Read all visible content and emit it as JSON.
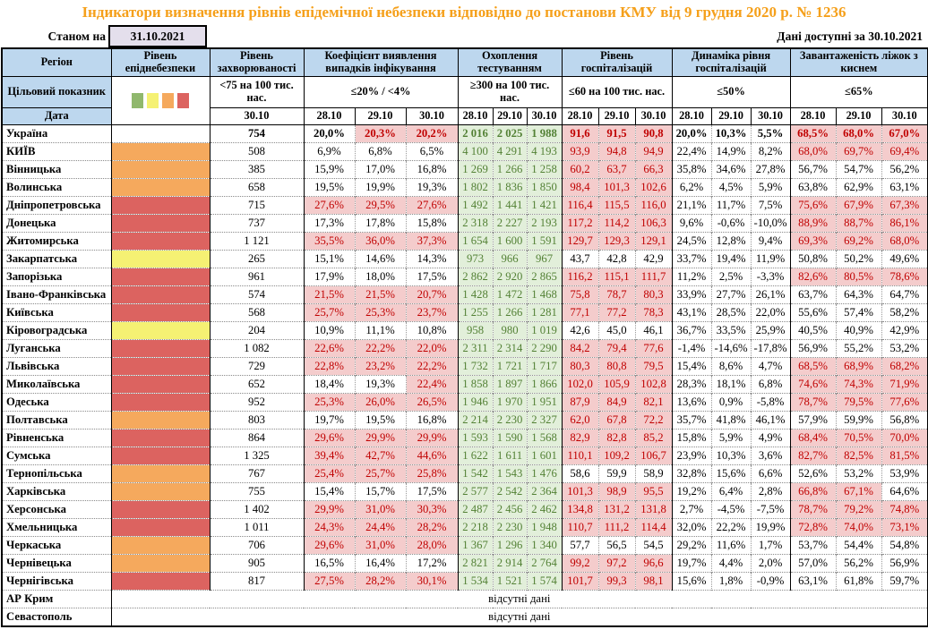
{
  "title": "Індикатори визначення рівнів епідемічної небезпеки відповідно до постанови КМУ від 9 грудня 2020 р. № 1236",
  "meta": {
    "as_of_label": "Станом на",
    "as_of_date": "31.10.2021",
    "available_label": "Дані доступні за",
    "available_date": "30.10.2021"
  },
  "header": {
    "region": "Регіон",
    "target_label": "Цільовий показник",
    "date_label": "Дата",
    "legend_colors": [
      "#90B86D",
      "#F5F173",
      "#F5A95D",
      "#DC6360"
    ],
    "groups": [
      {
        "name": "Рівень епіднебезпеки",
        "target": "",
        "dates": []
      },
      {
        "name": "Рівень захворюваності",
        "target": "<75 на 100 тис. нас.",
        "dates": [
          "30.10"
        ]
      },
      {
        "name": "Коефіцієнт виявлення випадків інфікування",
        "target": "≤20% / <4%",
        "dates": [
          "28.10",
          "29.10",
          "30.10"
        ]
      },
      {
        "name": "Охоплення тестуванням",
        "target": "≥300 на 100 тис. нас.",
        "dates": [
          "28.10",
          "29.10",
          "30.10"
        ]
      },
      {
        "name": "Рівень госпіталізацій",
        "target": "≤60 на 100 тис. нас.",
        "dates": [
          "28.10",
          "29.10",
          "30.10"
        ]
      },
      {
        "name": "Динаміка рівня госпіталізацій",
        "target": "≤50%",
        "dates": [
          "28.10",
          "29.10",
          "30.10"
        ]
      },
      {
        "name": "Завантаженість ліжок з киснем",
        "target": "≤65%",
        "dates": [
          "28.10",
          "29.10",
          "30.10"
        ]
      }
    ]
  },
  "colors": {
    "title_orange": "#F5A01B",
    "header_blue": "#BDD7EE",
    "date_box_bg": "#E4DFEC",
    "highlight_red_bg": "#F4CCCC",
    "highlight_red_text": "#C00000",
    "testing_green_bg": "#E2EFDA",
    "testing_green_text": "#538135",
    "epid": {
      "green": "#90B86D",
      "yellow": "#F5F173",
      "orange": "#F5A95D",
      "red": "#DC6360"
    }
  },
  "no_data_label": "відсутні дані",
  "no_data_rows": [
    {
      "region": "АР Крим"
    },
    {
      "region": "Севастополь"
    }
  ],
  "rows": [
    {
      "region": "Україна",
      "total": true,
      "epid": "",
      "incidence": "754",
      "detection": [
        "20,0%",
        "20,3%",
        "20,2%"
      ],
      "detection_hl": [
        0,
        1,
        1
      ],
      "testing": [
        "2 016",
        "2 025",
        "1 988"
      ],
      "hosp": [
        "91,6",
        "91,5",
        "90,8"
      ],
      "hosp_hl": [
        1,
        1,
        1
      ],
      "dynamics": [
        "20,0%",
        "10,3%",
        "5,5%"
      ],
      "oxygen": [
        "68,5%",
        "68,0%",
        "67,0%"
      ],
      "oxygen_hl": [
        1,
        1,
        1
      ]
    },
    {
      "region": "КИЇВ",
      "epid": "orange",
      "incidence": "508",
      "detection": [
        "6,9%",
        "6,8%",
        "6,5%"
      ],
      "detection_hl": [
        0,
        0,
        0
      ],
      "testing": [
        "4 100",
        "4 291",
        "4 193"
      ],
      "hosp": [
        "93,9",
        "94,8",
        "94,9"
      ],
      "hosp_hl": [
        1,
        1,
        1
      ],
      "dynamics": [
        "22,4%",
        "14,9%",
        "8,2%"
      ],
      "oxygen": [
        "68,0%",
        "69,7%",
        "69,4%"
      ],
      "oxygen_hl": [
        1,
        1,
        1
      ]
    },
    {
      "region": "Вінницька",
      "epid": "orange",
      "incidence": "385",
      "detection": [
        "15,9%",
        "17,0%",
        "16,8%"
      ],
      "detection_hl": [
        0,
        0,
        0
      ],
      "testing": [
        "1 269",
        "1 266",
        "1 258"
      ],
      "hosp": [
        "60,2",
        "63,7",
        "66,3"
      ],
      "hosp_hl": [
        1,
        1,
        1
      ],
      "dynamics": [
        "35,8%",
        "34,6%",
        "27,8%"
      ],
      "oxygen": [
        "56,7%",
        "54,7%",
        "56,2%"
      ],
      "oxygen_hl": [
        0,
        0,
        0
      ]
    },
    {
      "region": "Волинська",
      "epid": "orange",
      "incidence": "658",
      "detection": [
        "19,5%",
        "19,9%",
        "19,3%"
      ],
      "detection_hl": [
        0,
        0,
        0
      ],
      "testing": [
        "1 802",
        "1 836",
        "1 850"
      ],
      "hosp": [
        "98,4",
        "101,3",
        "102,6"
      ],
      "hosp_hl": [
        1,
        1,
        1
      ],
      "dynamics": [
        "6,2%",
        "4,5%",
        "5,9%"
      ],
      "oxygen": [
        "63,8%",
        "62,9%",
        "63,1%"
      ],
      "oxygen_hl": [
        0,
        0,
        0
      ]
    },
    {
      "region": "Дніпропетровська",
      "epid": "red",
      "incidence": "715",
      "detection": [
        "27,6%",
        "29,5%",
        "27,6%"
      ],
      "detection_hl": [
        1,
        1,
        1
      ],
      "testing": [
        "1 492",
        "1 441",
        "1 421"
      ],
      "hosp": [
        "116,4",
        "115,5",
        "116,0"
      ],
      "hosp_hl": [
        1,
        1,
        1
      ],
      "dynamics": [
        "21,1%",
        "11,7%",
        "7,5%"
      ],
      "oxygen": [
        "75,6%",
        "67,9%",
        "67,3%"
      ],
      "oxygen_hl": [
        1,
        1,
        1
      ]
    },
    {
      "region": "Донецька",
      "epid": "red",
      "incidence": "737",
      "detection": [
        "17,3%",
        "17,8%",
        "15,8%"
      ],
      "detection_hl": [
        0,
        0,
        0
      ],
      "testing": [
        "2 318",
        "2 227",
        "2 193"
      ],
      "hosp": [
        "117,2",
        "114,2",
        "106,3"
      ],
      "hosp_hl": [
        1,
        1,
        1
      ],
      "dynamics": [
        "9,6%",
        "-0,6%",
        "-10,0%"
      ],
      "oxygen": [
        "88,9%",
        "88,7%",
        "86,1%"
      ],
      "oxygen_hl": [
        1,
        1,
        1
      ]
    },
    {
      "region": "Житомирська",
      "epid": "red",
      "incidence": "1 121",
      "detection": [
        "35,5%",
        "36,0%",
        "37,3%"
      ],
      "detection_hl": [
        1,
        1,
        1
      ],
      "testing": [
        "1 654",
        "1 600",
        "1 591"
      ],
      "hosp": [
        "129,7",
        "129,3",
        "129,1"
      ],
      "hosp_hl": [
        1,
        1,
        1
      ],
      "dynamics": [
        "24,5%",
        "12,8%",
        "9,4%"
      ],
      "oxygen": [
        "69,3%",
        "69,2%",
        "68,0%"
      ],
      "oxygen_hl": [
        1,
        1,
        1
      ]
    },
    {
      "region": "Закарпатська",
      "epid": "yellow",
      "incidence": "265",
      "detection": [
        "15,1%",
        "14,6%",
        "14,3%"
      ],
      "detection_hl": [
        0,
        0,
        0
      ],
      "testing": [
        "973",
        "966",
        "967"
      ],
      "hosp": [
        "43,7",
        "42,8",
        "42,9"
      ],
      "hosp_hl": [
        0,
        0,
        0
      ],
      "dynamics": [
        "33,7%",
        "19,4%",
        "11,9%"
      ],
      "oxygen": [
        "50,8%",
        "50,2%",
        "49,6%"
      ],
      "oxygen_hl": [
        0,
        0,
        0
      ]
    },
    {
      "region": "Запорізька",
      "epid": "red",
      "incidence": "961",
      "detection": [
        "17,9%",
        "18,0%",
        "17,5%"
      ],
      "detection_hl": [
        0,
        0,
        0
      ],
      "testing": [
        "2 862",
        "2 920",
        "2 865"
      ],
      "hosp": [
        "116,2",
        "115,1",
        "111,7"
      ],
      "hosp_hl": [
        1,
        1,
        1
      ],
      "dynamics": [
        "11,2%",
        "2,5%",
        "-3,3%"
      ],
      "oxygen": [
        "82,6%",
        "80,5%",
        "78,6%"
      ],
      "oxygen_hl": [
        1,
        1,
        1
      ]
    },
    {
      "region": "Івано-Франківська",
      "epid": "red",
      "incidence": "574",
      "detection": [
        "21,5%",
        "21,5%",
        "20,7%"
      ],
      "detection_hl": [
        1,
        1,
        1
      ],
      "testing": [
        "1 428",
        "1 472",
        "1 468"
      ],
      "hosp": [
        "75,8",
        "78,7",
        "80,3"
      ],
      "hosp_hl": [
        1,
        1,
        1
      ],
      "dynamics": [
        "33,9%",
        "27,7%",
        "26,1%"
      ],
      "oxygen": [
        "63,7%",
        "64,3%",
        "64,7%"
      ],
      "oxygen_hl": [
        0,
        0,
        0
      ]
    },
    {
      "region": "Київська",
      "epid": "red",
      "incidence": "568",
      "detection": [
        "25,7%",
        "25,3%",
        "23,7%"
      ],
      "detection_hl": [
        1,
        1,
        1
      ],
      "testing": [
        "1 255",
        "1 266",
        "1 281"
      ],
      "hosp": [
        "77,1",
        "77,2",
        "78,3"
      ],
      "hosp_hl": [
        1,
        1,
        1
      ],
      "dynamics": [
        "43,1%",
        "28,5%",
        "22,0%"
      ],
      "oxygen": [
        "55,6%",
        "57,4%",
        "58,2%"
      ],
      "oxygen_hl": [
        0,
        0,
        0
      ]
    },
    {
      "region": "Кіровоградська",
      "epid": "yellow",
      "incidence": "204",
      "detection": [
        "10,9%",
        "11,1%",
        "10,8%"
      ],
      "detection_hl": [
        0,
        0,
        0
      ],
      "testing": [
        "958",
        "980",
        "1 019"
      ],
      "hosp": [
        "42,6",
        "45,0",
        "46,1"
      ],
      "hosp_hl": [
        0,
        0,
        0
      ],
      "dynamics": [
        "36,7%",
        "33,5%",
        "25,9%"
      ],
      "oxygen": [
        "40,5%",
        "40,9%",
        "42,9%"
      ],
      "oxygen_hl": [
        0,
        0,
        0
      ]
    },
    {
      "region": "Луганська",
      "epid": "red",
      "incidence": "1 082",
      "detection": [
        "22,6%",
        "22,2%",
        "22,0%"
      ],
      "detection_hl": [
        1,
        1,
        1
      ],
      "testing": [
        "2 311",
        "2 314",
        "2 290"
      ],
      "hosp": [
        "84,2",
        "79,4",
        "77,6"
      ],
      "hosp_hl": [
        1,
        1,
        1
      ],
      "dynamics": [
        "-1,4%",
        "-14,6%",
        "-17,8%"
      ],
      "oxygen": [
        "56,9%",
        "55,2%",
        "53,2%"
      ],
      "oxygen_hl": [
        0,
        0,
        0
      ]
    },
    {
      "region": "Львівська",
      "epid": "red",
      "incidence": "729",
      "detection": [
        "22,8%",
        "23,2%",
        "22,2%"
      ],
      "detection_hl": [
        1,
        1,
        1
      ],
      "testing": [
        "1 732",
        "1 721",
        "1 717"
      ],
      "hosp": [
        "80,3",
        "80,8",
        "79,5"
      ],
      "hosp_hl": [
        1,
        1,
        1
      ],
      "dynamics": [
        "15,4%",
        "8,6%",
        "4,7%"
      ],
      "oxygen": [
        "68,5%",
        "68,9%",
        "68,2%"
      ],
      "oxygen_hl": [
        1,
        1,
        1
      ]
    },
    {
      "region": "Миколаївська",
      "epid": "red",
      "incidence": "652",
      "detection": [
        "18,4%",
        "19,3%",
        "22,4%"
      ],
      "detection_hl": [
        0,
        0,
        1
      ],
      "testing": [
        "1 858",
        "1 897",
        "1 866"
      ],
      "hosp": [
        "102,0",
        "105,9",
        "102,8"
      ],
      "hosp_hl": [
        1,
        1,
        1
      ],
      "dynamics": [
        "28,3%",
        "18,1%",
        "6,8%"
      ],
      "oxygen": [
        "74,6%",
        "74,3%",
        "71,9%"
      ],
      "oxygen_hl": [
        1,
        1,
        1
      ]
    },
    {
      "region": "Одеська",
      "epid": "red",
      "incidence": "952",
      "detection": [
        "25,3%",
        "26,0%",
        "26,5%"
      ],
      "detection_hl": [
        1,
        1,
        1
      ],
      "testing": [
        "1 946",
        "1 970",
        "1 951"
      ],
      "hosp": [
        "87,9",
        "84,9",
        "82,1"
      ],
      "hosp_hl": [
        1,
        1,
        1
      ],
      "dynamics": [
        "13,6%",
        "0,9%",
        "-5,8%"
      ],
      "oxygen": [
        "78,7%",
        "79,5%",
        "77,6%"
      ],
      "oxygen_hl": [
        1,
        1,
        1
      ]
    },
    {
      "region": "Полтавська",
      "epid": "orange",
      "incidence": "803",
      "detection": [
        "19,7%",
        "19,5%",
        "16,8%"
      ],
      "detection_hl": [
        0,
        0,
        0
      ],
      "testing": [
        "2 214",
        "2 230",
        "2 327"
      ],
      "hosp": [
        "62,0",
        "67,8",
        "72,2"
      ],
      "hosp_hl": [
        1,
        1,
        1
      ],
      "dynamics": [
        "35,7%",
        "41,8%",
        "46,1%"
      ],
      "oxygen": [
        "57,9%",
        "59,9%",
        "56,8%"
      ],
      "oxygen_hl": [
        0,
        0,
        0
      ]
    },
    {
      "region": "Рівненська",
      "epid": "red",
      "incidence": "864",
      "detection": [
        "29,6%",
        "29,9%",
        "29,9%"
      ],
      "detection_hl": [
        1,
        1,
        1
      ],
      "testing": [
        "1 593",
        "1 590",
        "1 568"
      ],
      "hosp": [
        "82,9",
        "82,8",
        "85,2"
      ],
      "hosp_hl": [
        1,
        1,
        1
      ],
      "dynamics": [
        "15,8%",
        "5,9%",
        "4,9%"
      ],
      "oxygen": [
        "68,4%",
        "70,5%",
        "70,0%"
      ],
      "oxygen_hl": [
        1,
        1,
        1
      ]
    },
    {
      "region": "Сумська",
      "epid": "red",
      "incidence": "1 325",
      "detection": [
        "39,4%",
        "42,7%",
        "44,6%"
      ],
      "detection_hl": [
        1,
        1,
        1
      ],
      "testing": [
        "1 622",
        "1 611",
        "1 601"
      ],
      "hosp": [
        "110,1",
        "109,2",
        "106,7"
      ],
      "hosp_hl": [
        1,
        1,
        1
      ],
      "dynamics": [
        "23,9%",
        "10,3%",
        "3,6%"
      ],
      "oxygen": [
        "82,7%",
        "82,5%",
        "81,5%"
      ],
      "oxygen_hl": [
        1,
        1,
        1
      ]
    },
    {
      "region": "Тернопільська",
      "epid": "orange",
      "incidence": "767",
      "detection": [
        "25,4%",
        "25,7%",
        "25,8%"
      ],
      "detection_hl": [
        1,
        1,
        1
      ],
      "testing": [
        "1 542",
        "1 543",
        "1 476"
      ],
      "hosp": [
        "58,6",
        "59,9",
        "58,9"
      ],
      "hosp_hl": [
        0,
        0,
        0
      ],
      "dynamics": [
        "32,8%",
        "15,6%",
        "6,6%"
      ],
      "oxygen": [
        "52,6%",
        "53,2%",
        "53,9%"
      ],
      "oxygen_hl": [
        0,
        0,
        0
      ]
    },
    {
      "region": "Харківська",
      "epid": "orange",
      "incidence": "755",
      "detection": [
        "15,4%",
        "15,7%",
        "17,5%"
      ],
      "detection_hl": [
        0,
        0,
        0
      ],
      "testing": [
        "2 577",
        "2 542",
        "2 364"
      ],
      "hosp": [
        "101,3",
        "98,9",
        "95,5"
      ],
      "hosp_hl": [
        1,
        1,
        1
      ],
      "dynamics": [
        "19,2%",
        "6,4%",
        "2,8%"
      ],
      "oxygen": [
        "66,8%",
        "67,1%",
        "64,6%"
      ],
      "oxygen_hl": [
        1,
        1,
        0
      ]
    },
    {
      "region": "Херсонська",
      "epid": "red",
      "incidence": "1 402",
      "detection": [
        "29,9%",
        "31,0%",
        "30,3%"
      ],
      "detection_hl": [
        1,
        1,
        1
      ],
      "testing": [
        "2 487",
        "2 456",
        "2 462"
      ],
      "hosp": [
        "134,8",
        "131,2",
        "131,8"
      ],
      "hosp_hl": [
        1,
        1,
        1
      ],
      "dynamics": [
        "2,7%",
        "-4,5%",
        "-7,5%"
      ],
      "oxygen": [
        "78,7%",
        "79,2%",
        "74,8%"
      ],
      "oxygen_hl": [
        1,
        1,
        1
      ]
    },
    {
      "region": "Хмельницька",
      "epid": "red",
      "incidence": "1 011",
      "detection": [
        "24,3%",
        "24,4%",
        "28,2%"
      ],
      "detection_hl": [
        1,
        1,
        1
      ],
      "testing": [
        "2 218",
        "2 230",
        "1 948"
      ],
      "hosp": [
        "110,7",
        "111,2",
        "114,4"
      ],
      "hosp_hl": [
        1,
        1,
        1
      ],
      "dynamics": [
        "32,0%",
        "22,2%",
        "19,9%"
      ],
      "oxygen": [
        "72,8%",
        "74,0%",
        "73,1%"
      ],
      "oxygen_hl": [
        1,
        1,
        1
      ]
    },
    {
      "region": "Черкаська",
      "epid": "orange",
      "incidence": "706",
      "detection": [
        "29,6%",
        "31,0%",
        "28,0%"
      ],
      "detection_hl": [
        1,
        1,
        1
      ],
      "testing": [
        "1 367",
        "1 296",
        "1 340"
      ],
      "hosp": [
        "57,7",
        "56,5",
        "54,5"
      ],
      "hosp_hl": [
        0,
        0,
        0
      ],
      "dynamics": [
        "29,2%",
        "11,6%",
        "1,7%"
      ],
      "oxygen": [
        "53,7%",
        "54,4%",
        "54,8%"
      ],
      "oxygen_hl": [
        0,
        0,
        0
      ]
    },
    {
      "region": "Чернівецька",
      "epid": "orange",
      "incidence": "905",
      "detection": [
        "16,5%",
        "16,4%",
        "17,2%"
      ],
      "detection_hl": [
        0,
        0,
        0
      ],
      "testing": [
        "2 821",
        "2 914",
        "2 764"
      ],
      "hosp": [
        "99,2",
        "97,2",
        "96,6"
      ],
      "hosp_hl": [
        1,
        1,
        1
      ],
      "dynamics": [
        "19,7%",
        "4,4%",
        "2,0%"
      ],
      "oxygen": [
        "57,0%",
        "56,2%",
        "56,9%"
      ],
      "oxygen_hl": [
        0,
        0,
        0
      ]
    },
    {
      "region": "Чернігівська",
      "epid": "red",
      "incidence": "817",
      "detection": [
        "27,5%",
        "28,2%",
        "30,1%"
      ],
      "detection_hl": [
        1,
        1,
        1
      ],
      "testing": [
        "1 534",
        "1 521",
        "1 574"
      ],
      "hosp": [
        "101,7",
        "99,3",
        "98,1"
      ],
      "hosp_hl": [
        1,
        1,
        1
      ],
      "dynamics": [
        "15,6%",
        "1,8%",
        "-0,9%"
      ],
      "oxygen": [
        "63,1%",
        "61,8%",
        "59,7%"
      ],
      "oxygen_hl": [
        0,
        0,
        0
      ]
    }
  ]
}
